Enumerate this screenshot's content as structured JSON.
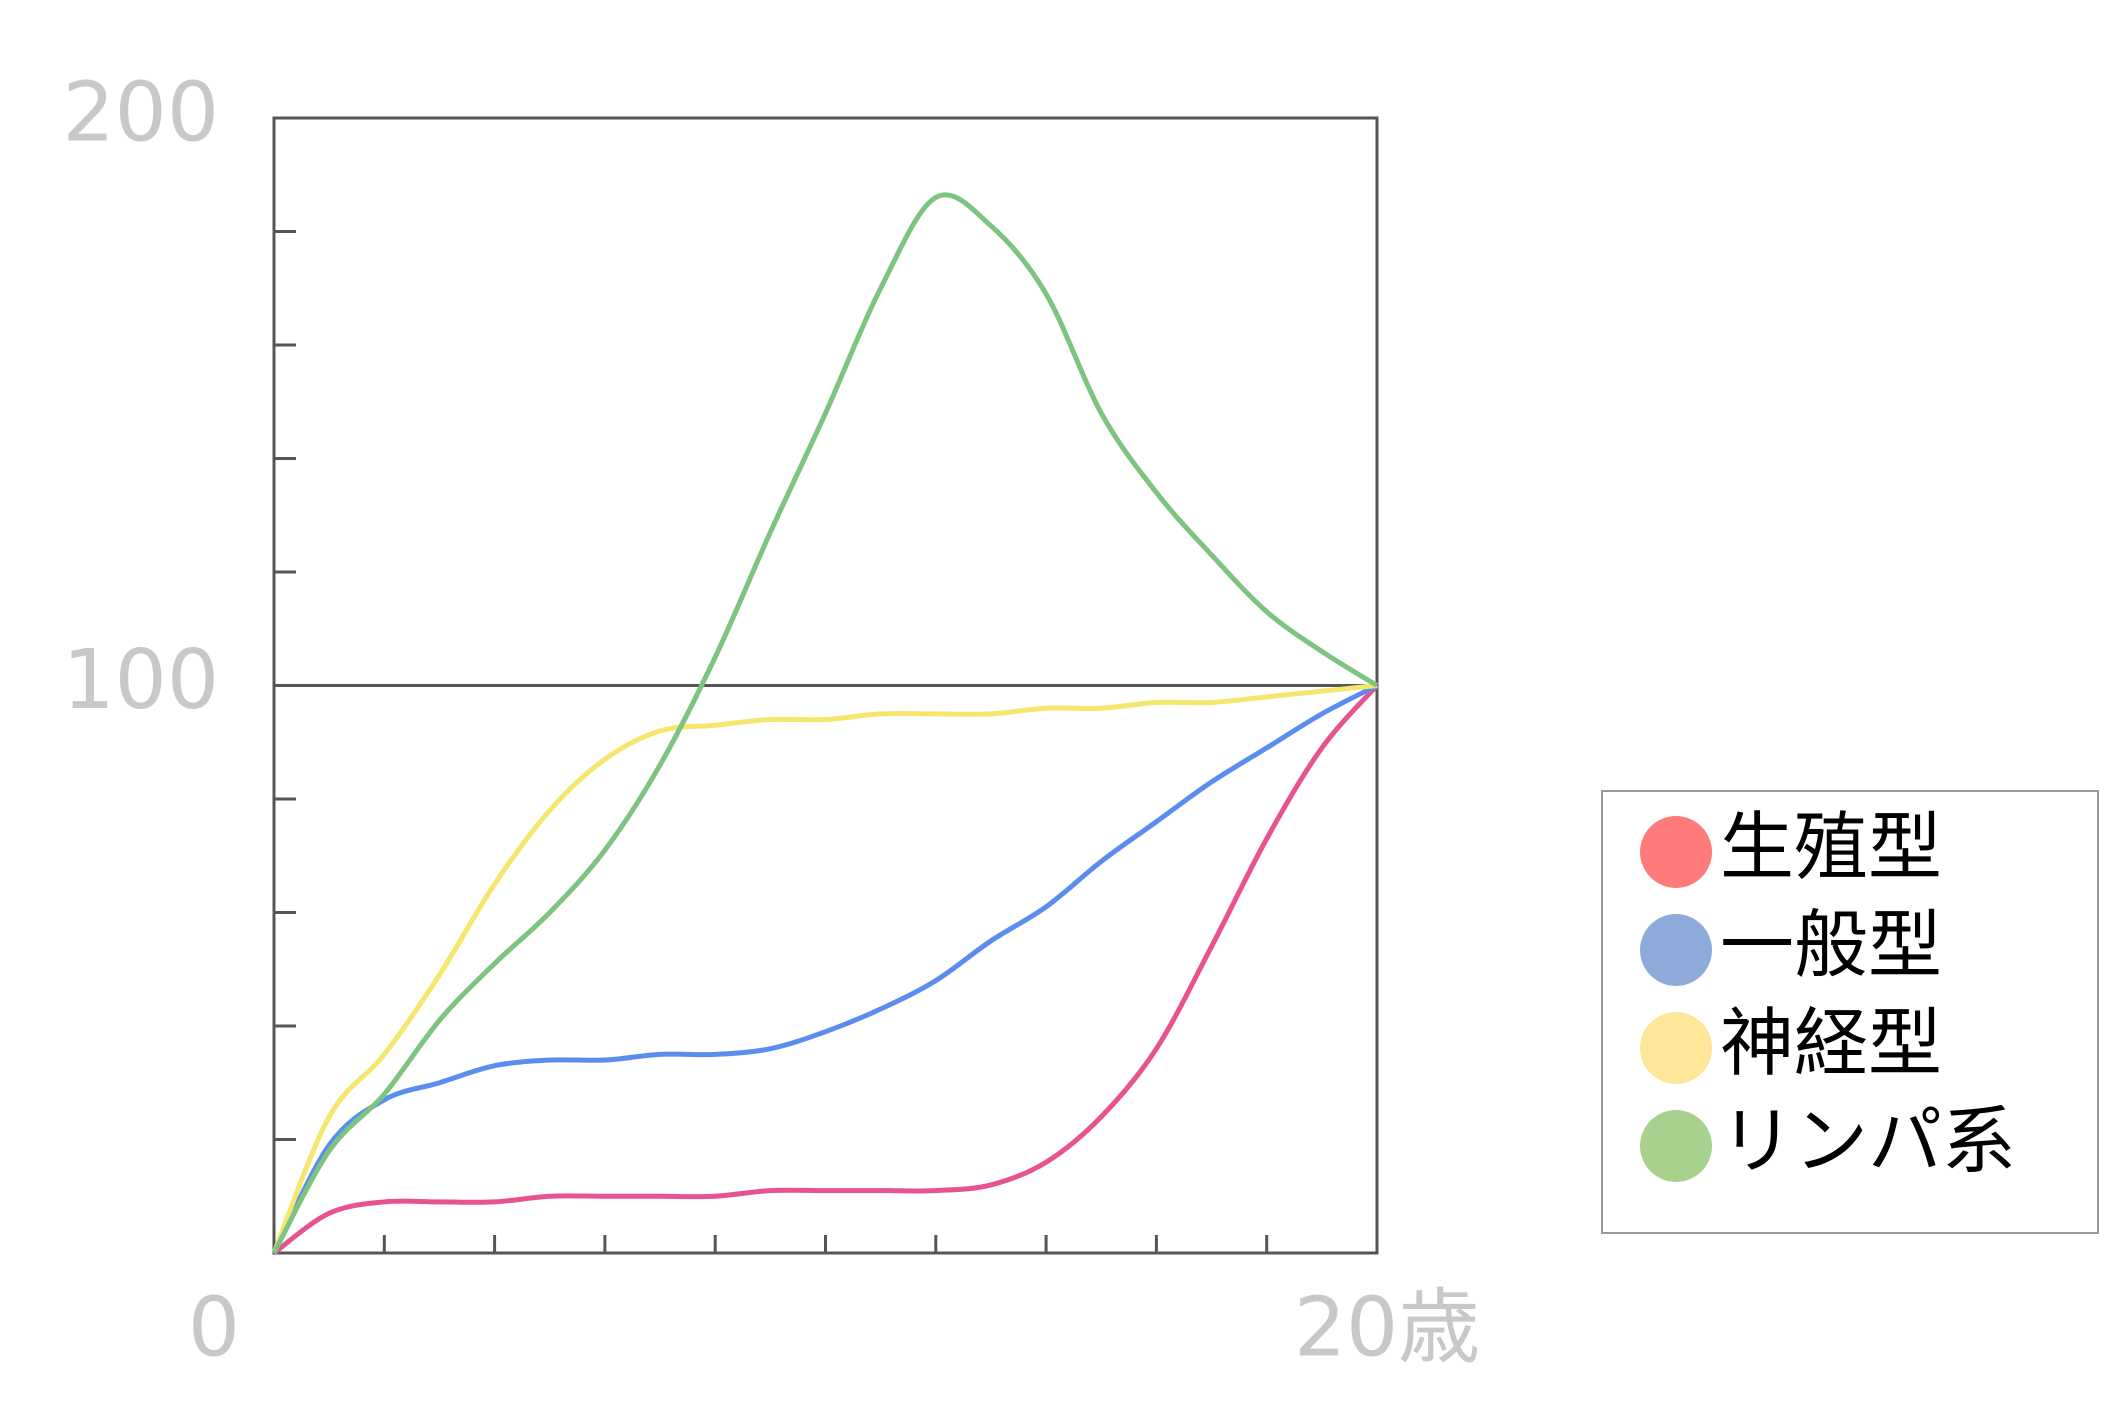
{
  "chart_data": {
    "type": "line",
    "x": [
      0,
      1,
      2,
      3,
      4,
      5,
      6,
      7,
      8,
      9,
      10,
      11,
      12,
      13,
      14,
      15,
      16,
      17,
      18,
      19,
      20
    ],
    "series": [
      {
        "name": "生殖型",
        "color": "#e8538f",
        "legend_color": "#ff7b7b",
        "values": [
          0,
          7,
          9,
          9,
          9,
          10,
          10,
          10,
          10,
          11,
          11,
          11,
          11,
          12,
          16,
          24,
          36,
          54,
          73,
          89,
          100
        ]
      },
      {
        "name": "一般型",
        "color": "#5b8def",
        "legend_color": "#8eaadb",
        "values": [
          0,
          19,
          27,
          30,
          33,
          34,
          34,
          35,
          35,
          36,
          39,
          43,
          48,
          55,
          61,
          69,
          76,
          83,
          89,
          95,
          100
        ]
      },
      {
        "name": "神経型",
        "color": "#f5e66e",
        "legend_color": "#ffe699",
        "values": [
          0,
          24,
          35,
          49,
          65,
          78,
          87,
          92,
          93,
          94,
          94,
          95,
          95,
          95,
          96,
          96,
          97,
          97,
          98,
          99,
          100
        ]
      },
      {
        "name": "リンパ系",
        "color": "#7cc47f",
        "legend_color": "#a9d18e",
        "values": [
          0,
          18,
          28,
          41,
          51,
          60,
          71,
          86,
          105,
          127,
          148,
          170,
          186,
          181,
          169,
          148,
          134,
          123,
          113,
          106,
          100
        ]
      }
    ],
    "xlim": [
      0,
      20
    ],
    "ylim": [
      0,
      200
    ],
    "xticks": [
      0,
      {
        "value": 20,
        "label": "20歳"
      }
    ],
    "minor_xticks": [
      2,
      4,
      6,
      8,
      10,
      12,
      14,
      16,
      18
    ],
    "yticks": [
      100,
      200
    ],
    "minor_yticks": [
      20,
      40,
      60,
      80,
      120,
      140,
      160,
      180
    ],
    "hline": 100,
    "legend": "right"
  }
}
